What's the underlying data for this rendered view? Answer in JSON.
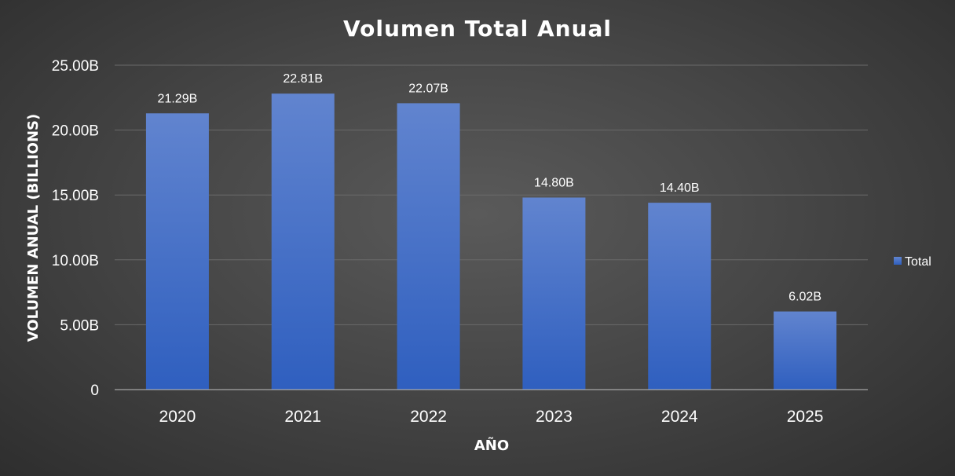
{
  "chart_data": {
    "type": "bar",
    "title": "Volumen Total Anual",
    "xlabel": "AÑO",
    "ylabel": "VOLUMEN ANUAL (BILLIONS)",
    "categories": [
      "2020",
      "2021",
      "2022",
      "2023",
      "2024",
      "2025"
    ],
    "series": [
      {
        "name": "Total",
        "values": [
          21.29,
          22.81,
          22.07,
          14.8,
          14.4,
          6.02
        ],
        "labels": [
          "21.29B",
          "22.81B",
          "22.07B",
          "14.80B",
          "14.40B",
          "6.02B"
        ]
      }
    ],
    "ylim": [
      0,
      25
    ],
    "yticks": [
      {
        "value": 0,
        "label": "0"
      },
      {
        "value": 5,
        "label": "5.00B"
      },
      {
        "value": 10,
        "label": "10.00B"
      },
      {
        "value": 15,
        "label": "15.00B"
      },
      {
        "value": 20,
        "label": "20.00B"
      },
      {
        "value": 25,
        "label": "25.00B"
      }
    ],
    "grid": true,
    "legend_position": "right",
    "colors": {
      "bar_top": "#6184cf",
      "bar_bottom": "#2f5fbf",
      "grid": "#6a6a6a",
      "axis": "#bfbfbf"
    }
  }
}
